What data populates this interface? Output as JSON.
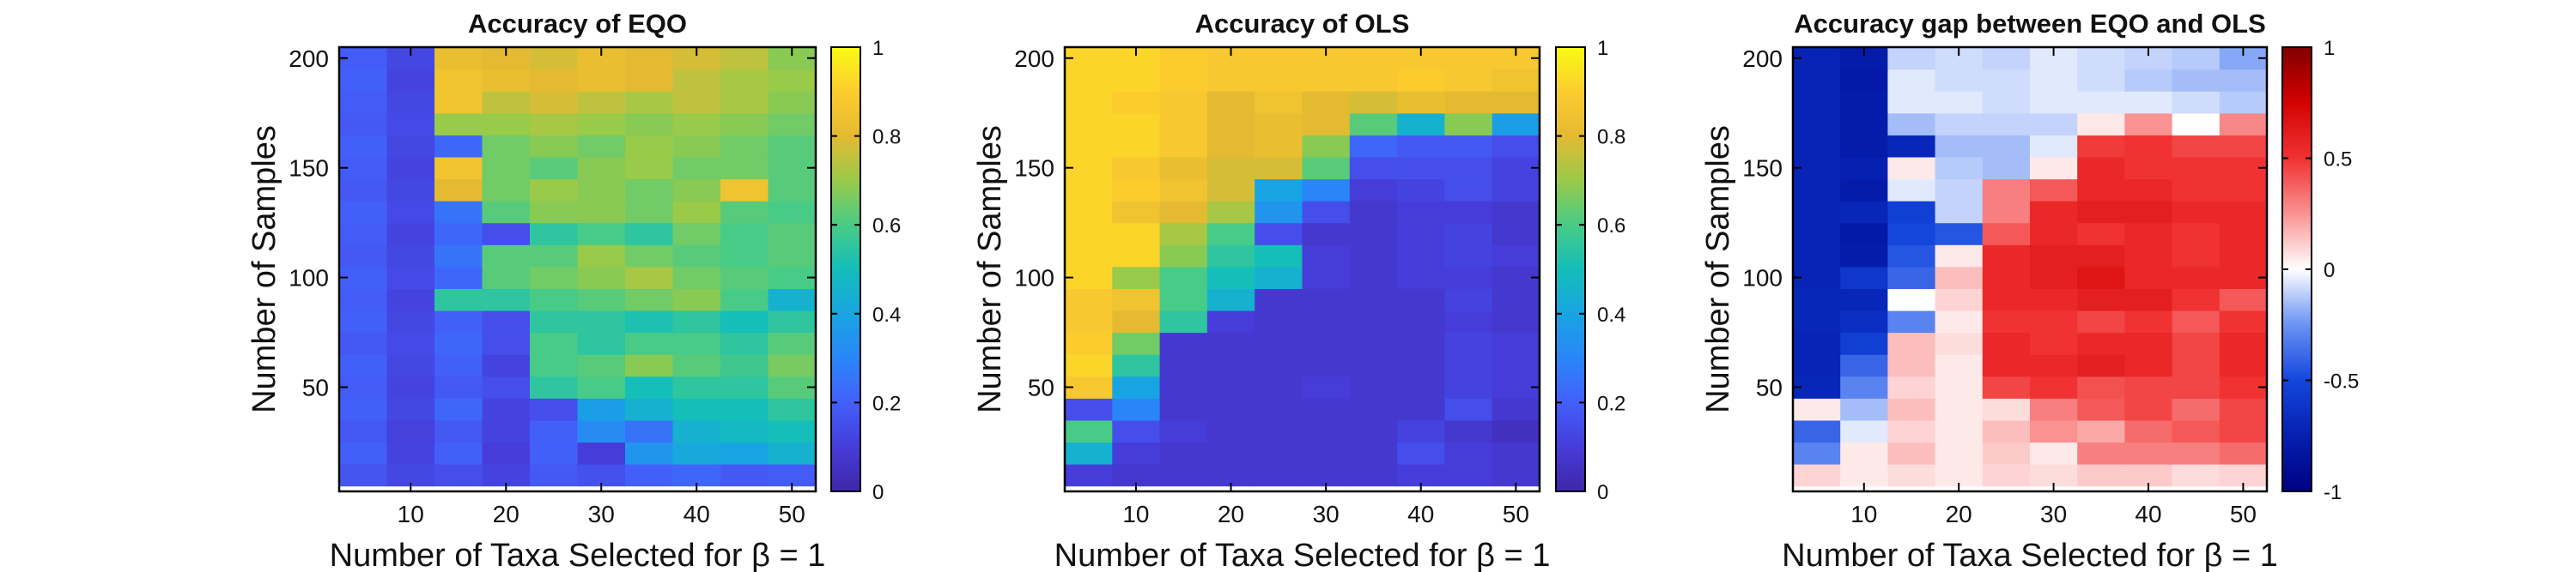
{
  "chart_data": [
    {
      "type": "heatmap",
      "title": "Accuracy of EQO",
      "xlabel": "Number of Taxa Selected for β = 1",
      "ylabel": "Number of Samples",
      "xticks": [
        10,
        20,
        30,
        40,
        50
      ],
      "yticks": [
        50,
        100,
        150,
        200
      ],
      "xlim": [
        2.5,
        52.5
      ],
      "ylim": [
        2.5,
        205
      ],
      "colormap": "parula",
      "clim": [
        0,
        1
      ],
      "colorbar_ticks": [
        0,
        0.2,
        0.4,
        0.6,
        0.8,
        1
      ],
      "colorbar_ticklabels": [
        "0",
        "0.2",
        "0.4",
        "0.6",
        "0.8",
        "1"
      ],
      "x_values": [
        5,
        10,
        15,
        20,
        25,
        30,
        35,
        40,
        45,
        50
      ],
      "y_values": [
        10,
        20,
        30,
        40,
        50,
        60,
        70,
        80,
        90,
        100,
        110,
        120,
        130,
        140,
        150,
        160,
        170,
        180,
        190,
        200
      ],
      "values_rows_bottom_to_top": [
        [
          0.17,
          0.13,
          0.15,
          0.12,
          0.18,
          0.16,
          0.2,
          0.22,
          0.18,
          0.19
        ],
        [
          0.2,
          0.12,
          0.2,
          0.1,
          0.2,
          0.1,
          0.35,
          0.42,
          0.4,
          0.45
        ],
        [
          0.18,
          0.11,
          0.18,
          0.12,
          0.2,
          0.32,
          0.25,
          0.45,
          0.48,
          0.5
        ],
        [
          0.2,
          0.13,
          0.22,
          0.12,
          0.15,
          0.38,
          0.45,
          0.5,
          0.5,
          0.55
        ],
        [
          0.19,
          0.12,
          0.18,
          0.15,
          0.55,
          0.6,
          0.5,
          0.55,
          0.55,
          0.62
        ],
        [
          0.2,
          0.13,
          0.2,
          0.12,
          0.6,
          0.62,
          0.68,
          0.62,
          0.58,
          0.66
        ],
        [
          0.18,
          0.14,
          0.22,
          0.15,
          0.6,
          0.55,
          0.6,
          0.6,
          0.55,
          0.62
        ],
        [
          0.2,
          0.13,
          0.2,
          0.15,
          0.55,
          0.55,
          0.52,
          0.55,
          0.5,
          0.55
        ],
        [
          0.19,
          0.12,
          0.55,
          0.55,
          0.6,
          0.62,
          0.65,
          0.68,
          0.6,
          0.45
        ],
        [
          0.2,
          0.14,
          0.22,
          0.62,
          0.65,
          0.68,
          0.72,
          0.65,
          0.62,
          0.6
        ],
        [
          0.18,
          0.13,
          0.25,
          0.62,
          0.62,
          0.7,
          0.65,
          0.62,
          0.6,
          0.62
        ],
        [
          0.19,
          0.12,
          0.22,
          0.15,
          0.55,
          0.6,
          0.55,
          0.65,
          0.6,
          0.62
        ],
        [
          0.2,
          0.14,
          0.25,
          0.62,
          0.68,
          0.68,
          0.65,
          0.7,
          0.62,
          0.6
        ],
        [
          0.18,
          0.13,
          0.8,
          0.65,
          0.7,
          0.68,
          0.65,
          0.68,
          0.85,
          0.62
        ],
        [
          0.19,
          0.12,
          0.85,
          0.65,
          0.62,
          0.68,
          0.7,
          0.65,
          0.65,
          0.62
        ],
        [
          0.2,
          0.13,
          0.22,
          0.65,
          0.68,
          0.65,
          0.7,
          0.68,
          0.65,
          0.62
        ],
        [
          0.18,
          0.14,
          0.7,
          0.7,
          0.72,
          0.7,
          0.68,
          0.7,
          0.68,
          0.65
        ],
        [
          0.19,
          0.13,
          0.85,
          0.75,
          0.78,
          0.75,
          0.72,
          0.75,
          0.72,
          0.68
        ],
        [
          0.2,
          0.12,
          0.85,
          0.82,
          0.8,
          0.82,
          0.8,
          0.75,
          0.72,
          0.7
        ],
        [
          0.19,
          0.13,
          0.82,
          0.8,
          0.78,
          0.82,
          0.8,
          0.78,
          0.75,
          0.68
        ]
      ]
    },
    {
      "type": "heatmap",
      "title": "Accuracy of OLS",
      "xlabel": "Number of Taxa Selected for β = 1",
      "ylabel": "Number of Samples",
      "xticks": [
        10,
        20,
        30,
        40,
        50
      ],
      "yticks": [
        50,
        100,
        150,
        200
      ],
      "xlim": [
        2.5,
        52.5
      ],
      "ylim": [
        2.5,
        205
      ],
      "colormap": "parula",
      "clim": [
        0,
        1
      ],
      "colorbar_ticks": [
        0,
        0.2,
        0.4,
        0.6,
        0.8,
        1
      ],
      "colorbar_ticklabels": [
        "0",
        "0.2",
        "0.4",
        "0.6",
        "0.8",
        "1"
      ],
      "x_values": [
        5,
        10,
        15,
        20,
        25,
        30,
        35,
        40,
        45,
        50
      ],
      "y_values": [
        10,
        20,
        30,
        40,
        50,
        60,
        70,
        80,
        90,
        100,
        110,
        120,
        130,
        140,
        150,
        160,
        170,
        180,
        190,
        200
      ],
      "values_rows_bottom_to_top": [
        [
          0.1,
          0.08,
          0.08,
          0.08,
          0.08,
          0.08,
          0.08,
          0.1,
          0.1,
          0.08
        ],
        [
          0.45,
          0.1,
          0.08,
          0.08,
          0.08,
          0.08,
          0.08,
          0.15,
          0.1,
          0.08
        ],
        [
          0.6,
          0.15,
          0.1,
          0.08,
          0.08,
          0.08,
          0.08,
          0.12,
          0.08,
          0.05
        ],
        [
          0.15,
          0.3,
          0.08,
          0.08,
          0.08,
          0.08,
          0.08,
          0.08,
          0.15,
          0.08
        ],
        [
          0.88,
          0.4,
          0.08,
          0.08,
          0.08,
          0.1,
          0.08,
          0.08,
          0.12,
          0.1
        ],
        [
          0.92,
          0.55,
          0.08,
          0.08,
          0.08,
          0.08,
          0.08,
          0.08,
          0.12,
          0.1
        ],
        [
          0.9,
          0.65,
          0.08,
          0.08,
          0.08,
          0.08,
          0.08,
          0.08,
          0.12,
          0.1
        ],
        [
          0.88,
          0.8,
          0.55,
          0.1,
          0.08,
          0.08,
          0.08,
          0.08,
          0.1,
          0.08
        ],
        [
          0.88,
          0.85,
          0.6,
          0.45,
          0.08,
          0.08,
          0.08,
          0.08,
          0.12,
          0.08
        ],
        [
          0.92,
          0.7,
          0.6,
          0.5,
          0.45,
          0.1,
          0.08,
          0.1,
          0.1,
          0.08
        ],
        [
          0.92,
          0.92,
          0.68,
          0.55,
          0.5,
          0.1,
          0.08,
          0.1,
          0.12,
          0.1
        ],
        [
          0.92,
          0.92,
          0.72,
          0.6,
          0.15,
          0.08,
          0.08,
          0.1,
          0.12,
          0.08
        ],
        [
          0.92,
          0.85,
          0.8,
          0.72,
          0.35,
          0.15,
          0.08,
          0.1,
          0.1,
          0.08
        ],
        [
          0.92,
          0.9,
          0.85,
          0.78,
          0.4,
          0.3,
          0.1,
          0.12,
          0.15,
          0.12
        ],
        [
          0.92,
          0.88,
          0.82,
          0.78,
          0.78,
          0.62,
          0.15,
          0.15,
          0.15,
          0.12
        ],
        [
          0.92,
          0.92,
          0.88,
          0.8,
          0.82,
          0.68,
          0.22,
          0.18,
          0.18,
          0.15
        ],
        [
          0.92,
          0.92,
          0.88,
          0.8,
          0.82,
          0.8,
          0.62,
          0.45,
          0.68,
          0.38
        ],
        [
          0.92,
          0.9,
          0.88,
          0.8,
          0.85,
          0.8,
          0.78,
          0.82,
          0.8,
          0.8
        ],
        [
          0.92,
          0.92,
          0.9,
          0.88,
          0.88,
          0.88,
          0.88,
          0.9,
          0.88,
          0.85
        ],
        [
          0.92,
          0.92,
          0.9,
          0.88,
          0.88,
          0.88,
          0.88,
          0.88,
          0.88,
          0.88
        ]
      ]
    },
    {
      "type": "heatmap",
      "title": "Accuracy gap between EQO and OLS",
      "xlabel": "Number of Taxa Selected for β = 1",
      "ylabel": "Number of Samples",
      "xticks": [
        10,
        20,
        30,
        40,
        50
      ],
      "yticks": [
        50,
        100,
        150,
        200
      ],
      "xlim": [
        2.5,
        52.5
      ],
      "ylim": [
        2.5,
        205
      ],
      "colormap": "blue-white-red",
      "clim": [
        -1,
        1
      ],
      "colorbar_ticks": [
        -1,
        -0.5,
        0,
        0.5,
        1
      ],
      "colorbar_ticklabels": [
        "-1",
        "-0.5",
        "0",
        "0.5",
        "1"
      ],
      "x_values": [
        5,
        10,
        15,
        20,
        25,
        30,
        35,
        40,
        45,
        50
      ],
      "y_values": [
        10,
        20,
        30,
        40,
        50,
        60,
        70,
        80,
        90,
        100,
        110,
        120,
        130,
        140,
        150,
        160,
        170,
        180,
        190,
        200
      ],
      "values_rows_bottom_to_top": [
        [
          0.1,
          0.05,
          0.08,
          0.05,
          0.1,
          0.08,
          0.12,
          0.12,
          0.08,
          0.1
        ],
        [
          -0.3,
          0.05,
          0.15,
          0.05,
          0.12,
          0.05,
          0.3,
          0.3,
          0.3,
          0.35
        ],
        [
          -0.4,
          -0.05,
          0.1,
          0.05,
          0.15,
          0.25,
          0.2,
          0.35,
          0.4,
          0.45
        ],
        [
          0.05,
          -0.15,
          0.15,
          0.05,
          0.08,
          0.3,
          0.4,
          0.45,
          0.35,
          0.45
        ],
        [
          -0.7,
          -0.3,
          0.1,
          0.05,
          0.45,
          0.5,
          0.42,
          0.45,
          0.45,
          0.5
        ],
        [
          -0.72,
          -0.4,
          0.15,
          0.05,
          0.55,
          0.55,
          0.6,
          0.55,
          0.45,
          0.55
        ],
        [
          -0.72,
          -0.55,
          0.15,
          0.08,
          0.55,
          0.5,
          0.55,
          0.55,
          0.45,
          0.55
        ],
        [
          -0.7,
          -0.65,
          -0.3,
          0.05,
          0.5,
          0.5,
          0.45,
          0.5,
          0.4,
          0.5
        ],
        [
          -0.7,
          -0.7,
          0.0,
          0.1,
          0.55,
          0.55,
          0.6,
          0.6,
          0.5,
          0.4
        ],
        [
          -0.72,
          -0.6,
          -0.4,
          0.15,
          0.55,
          0.6,
          0.65,
          0.55,
          0.55,
          0.55
        ],
        [
          -0.72,
          -0.78,
          -0.45,
          0.05,
          0.55,
          0.6,
          0.6,
          0.55,
          0.5,
          0.55
        ],
        [
          -0.72,
          -0.8,
          -0.5,
          -0.45,
          0.4,
          0.55,
          0.5,
          0.55,
          0.5,
          0.55
        ],
        [
          -0.72,
          -0.7,
          -0.55,
          -0.1,
          0.3,
          0.55,
          0.6,
          0.6,
          0.55,
          0.55
        ],
        [
          -0.72,
          -0.78,
          -0.05,
          -0.1,
          0.3,
          0.4,
          0.55,
          0.55,
          0.5,
          0.5
        ],
        [
          -0.72,
          -0.75,
          0.05,
          -0.12,
          -0.15,
          0.05,
          0.55,
          0.5,
          0.5,
          0.5
        ],
        [
          -0.72,
          -0.78,
          -0.7,
          -0.15,
          -0.15,
          -0.05,
          0.48,
          0.5,
          0.45,
          0.45
        ],
        [
          -0.72,
          -0.78,
          -0.15,
          -0.1,
          -0.1,
          -0.1,
          0.05,
          0.25,
          0.0,
          0.28
        ],
        [
          -0.72,
          -0.78,
          -0.05,
          -0.05,
          -0.08,
          -0.05,
          -0.05,
          -0.05,
          -0.08,
          -0.12
        ],
        [
          -0.72,
          -0.8,
          -0.05,
          -0.08,
          -0.08,
          -0.05,
          -0.08,
          -0.12,
          -0.15,
          -0.15
        ],
        [
          -0.72,
          -0.78,
          -0.1,
          -0.08,
          -0.1,
          -0.05,
          -0.08,
          -0.1,
          -0.12,
          -0.2
        ]
      ]
    }
  ]
}
